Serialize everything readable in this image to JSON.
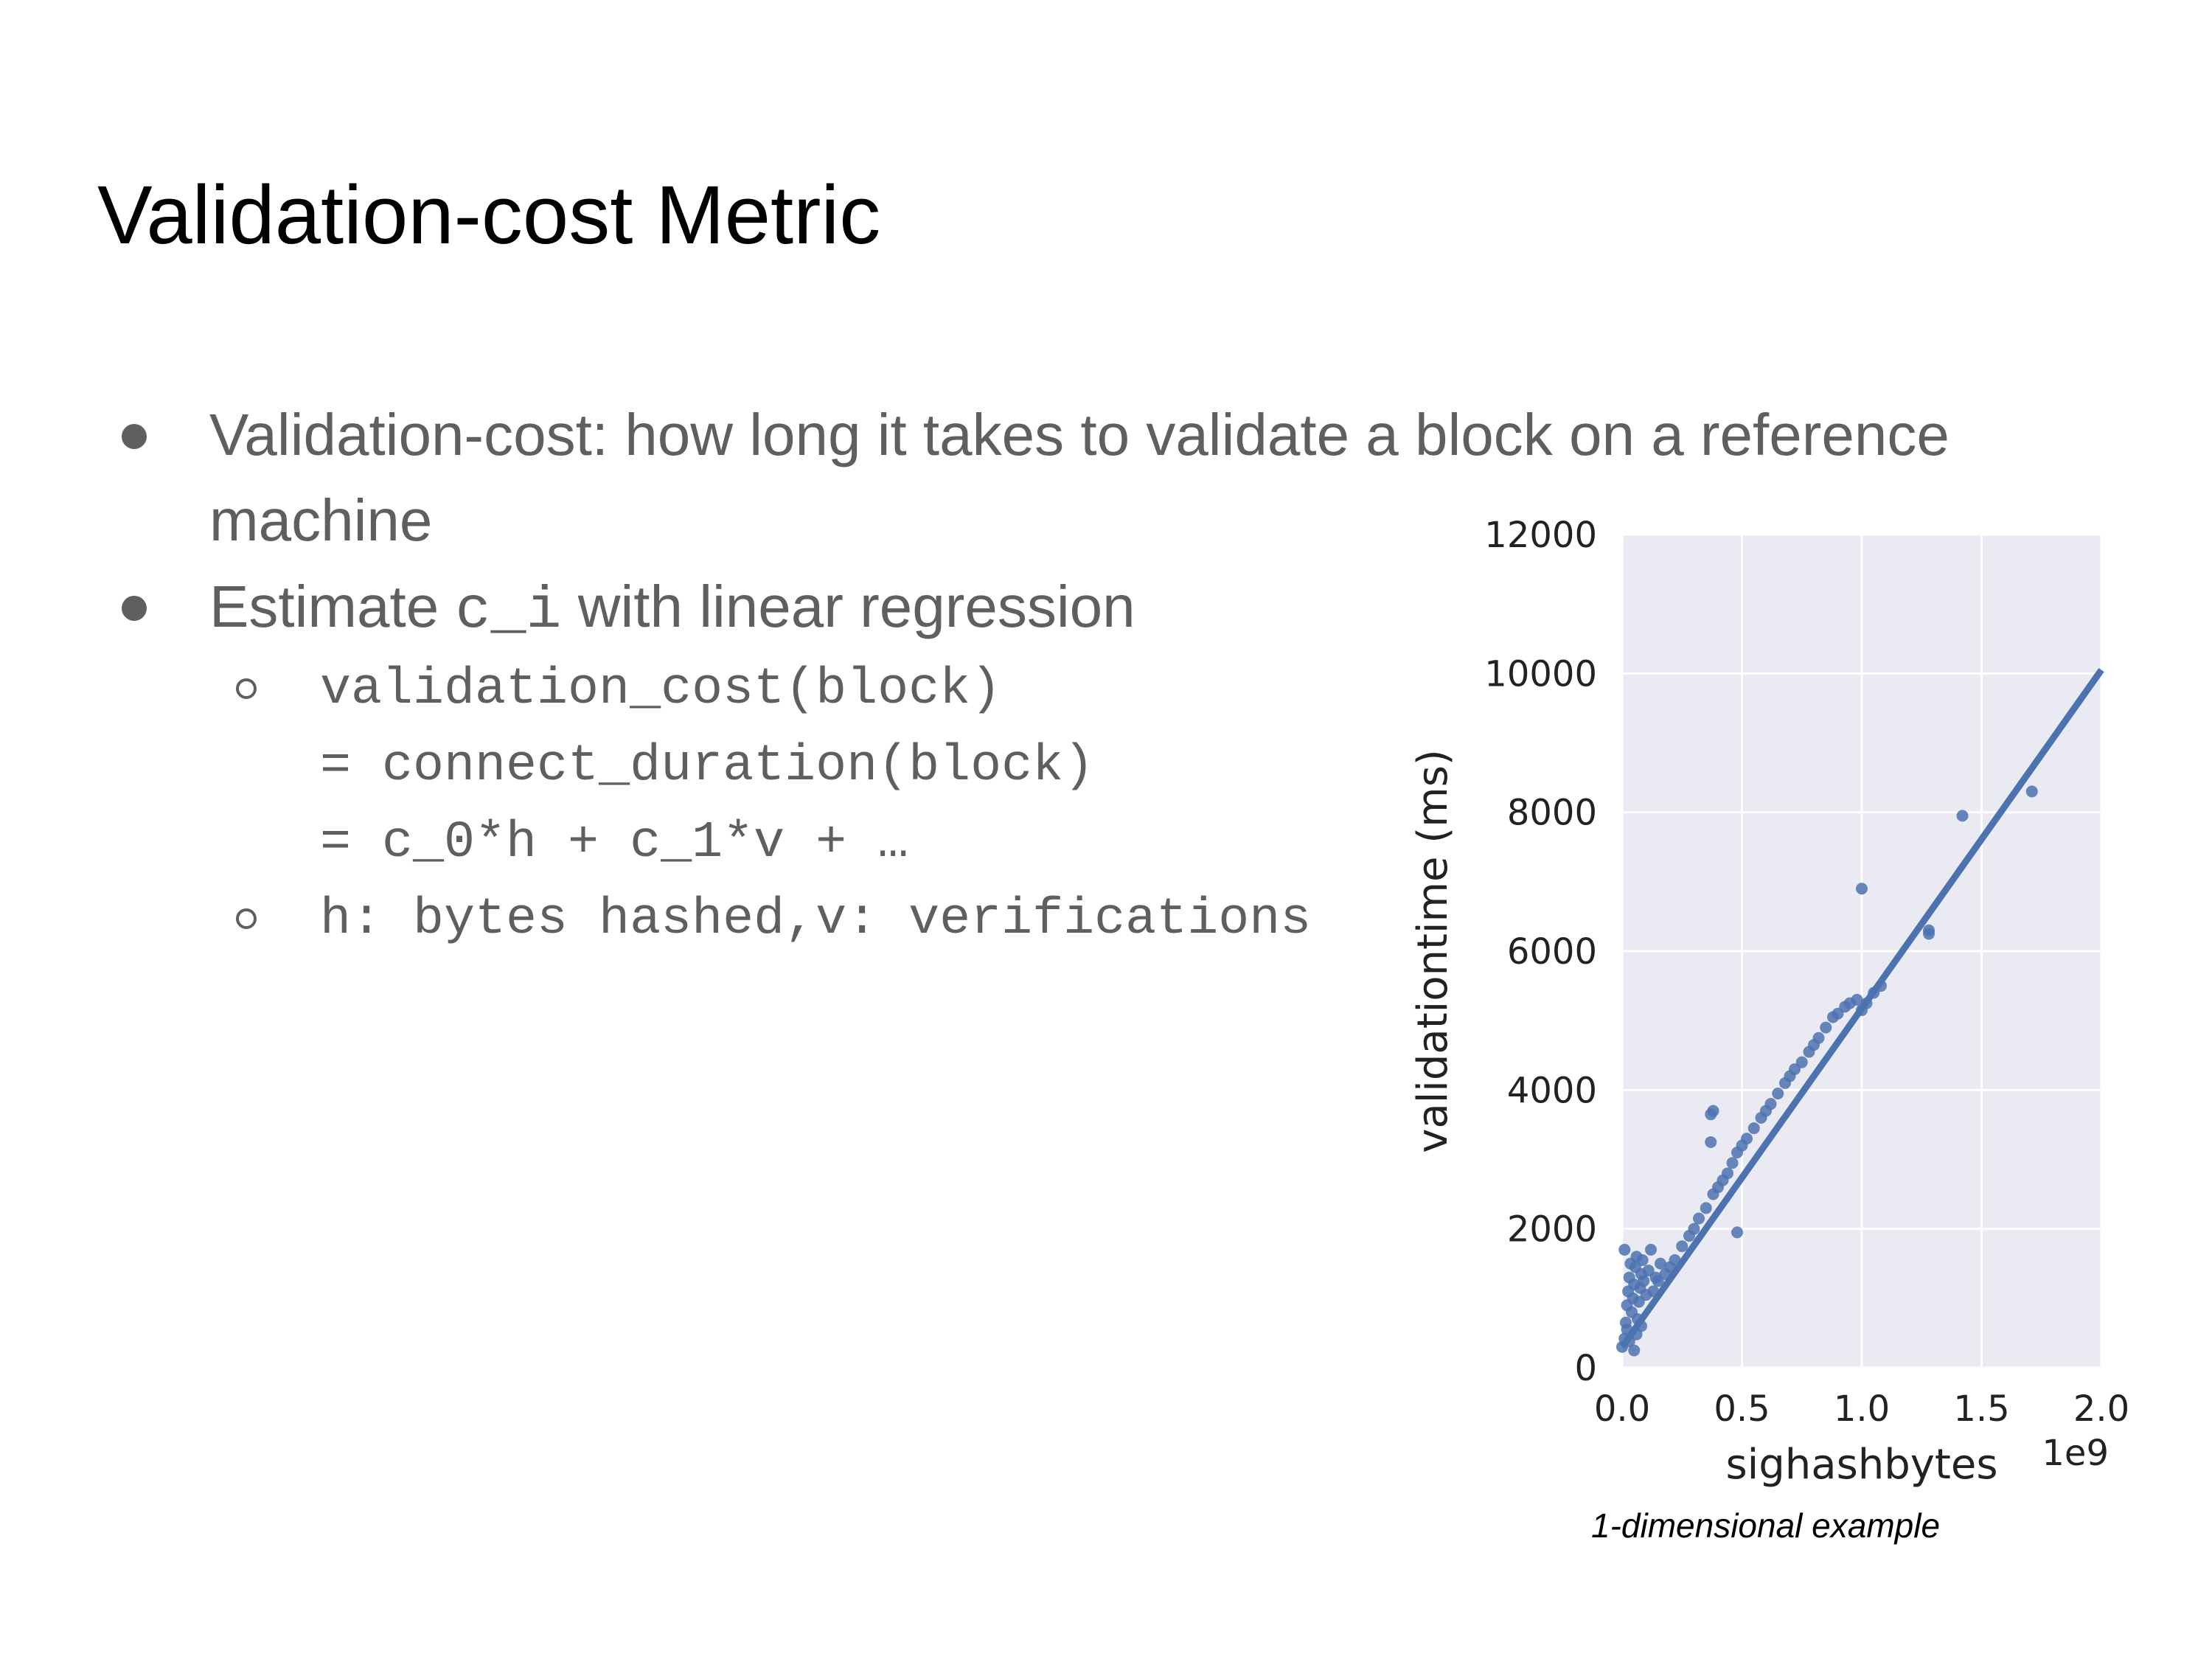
{
  "slide": {
    "title": "Validation-cost Metric",
    "bullet1_line1": "Validation-cost: how long it takes to validate a block on a reference",
    "bullet1_line2": "machine",
    "bullet2_prefix": "Estimate ",
    "bullet2_code": "c_i",
    "bullet2_suffix": " with linear regression",
    "sub1_line1": "validation_cost(block)",
    "sub1_line2": "= connect_duration(block)",
    "sub1_line3": "= c_0*h + c_1*v + …",
    "sub2": "h: bytes hashed,v: verifications",
    "caption": "1-dimensional example"
  },
  "chart_data": {
    "type": "scatter",
    "xlabel": "sighashbytes",
    "ylabel": "validationtime (ms)",
    "x_offset_label": "1e9",
    "xlim": [
      0.0,
      2.0
    ],
    "ylim": [
      0,
      12000
    ],
    "x_ticks": [
      "0.0",
      "0.5",
      "1.0",
      "1.5",
      "2.0"
    ],
    "y_ticks": [
      "0",
      "2000",
      "4000",
      "6000",
      "8000",
      "10000",
      "12000"
    ],
    "x_tick_values": [
      0.0,
      0.5,
      1.0,
      1.5,
      2.0
    ],
    "y_tick_values": [
      0,
      2000,
      4000,
      6000,
      8000,
      10000,
      12000
    ],
    "grid": true,
    "colors": {
      "points": "#4c72b0",
      "background": "#eaeaf2",
      "grid": "#ffffff"
    },
    "regression_line": {
      "x": [
        0.0,
        2.0
      ],
      "y": [
        300,
        10050
      ]
    },
    "points": [
      [
        0.0,
        300
      ],
      [
        0.01,
        420
      ],
      [
        0.015,
        650
      ],
      [
        0.02,
        900
      ],
      [
        0.025,
        1100
      ],
      [
        0.03,
        1300
      ],
      [
        0.035,
        1500
      ],
      [
        0.01,
        1700
      ],
      [
        0.04,
        800
      ],
      [
        0.045,
        1000
      ],
      [
        0.05,
        1200
      ],
      [
        0.055,
        1450
      ],
      [
        0.06,
        1600
      ],
      [
        0.065,
        700
      ],
      [
        0.07,
        950
      ],
      [
        0.075,
        1150
      ],
      [
        0.08,
        1350
      ],
      [
        0.085,
        1550
      ],
      [
        0.09,
        1250
      ],
      [
        0.1,
        1050
      ],
      [
        0.11,
        1400
      ],
      [
        0.12,
        1700
      ],
      [
        0.13,
        1100
      ],
      [
        0.14,
        1300
      ],
      [
        0.15,
        1250
      ],
      [
        0.16,
        1500
      ],
      [
        0.18,
        1350
      ],
      [
        0.2,
        1450
      ],
      [
        0.22,
        1550
      ],
      [
        0.25,
        1750
      ],
      [
        0.28,
        1900
      ],
      [
        0.3,
        2000
      ],
      [
        0.32,
        2150
      ],
      [
        0.35,
        2300
      ],
      [
        0.38,
        2500
      ],
      [
        0.4,
        2600
      ],
      [
        0.42,
        2700
      ],
      [
        0.44,
        2800
      ],
      [
        0.46,
        2950
      ],
      [
        0.48,
        3100
      ],
      [
        0.5,
        3200
      ],
      [
        0.52,
        3300
      ],
      [
        0.55,
        3450
      ],
      [
        0.58,
        3600
      ],
      [
        0.6,
        3700
      ],
      [
        0.62,
        3800
      ],
      [
        0.65,
        3950
      ],
      [
        0.68,
        4100
      ],
      [
        0.7,
        4200
      ],
      [
        0.72,
        4300
      ],
      [
        0.75,
        4400
      ],
      [
        0.78,
        4550
      ],
      [
        0.8,
        4650
      ],
      [
        0.82,
        4750
      ],
      [
        0.85,
        4900
      ],
      [
        0.88,
        5050
      ],
      [
        0.9,
        5100
      ],
      [
        0.93,
        5200
      ],
      [
        0.95,
        5250
      ],
      [
        0.98,
        5300
      ],
      [
        1.0,
        5150
      ],
      [
        1.02,
        5250
      ],
      [
        1.05,
        5400
      ],
      [
        1.08,
        5500
      ],
      [
        0.37,
        3650
      ],
      [
        0.38,
        3700
      ],
      [
        0.37,
        3250
      ],
      [
        0.48,
        1950
      ],
      [
        1.0,
        6900
      ],
      [
        1.28,
        6300
      ],
      [
        1.28,
        6250
      ],
      [
        1.42,
        7950
      ],
      [
        1.71,
        8300
      ],
      [
        0.05,
        250
      ],
      [
        0.03,
        380
      ],
      [
        0.02,
        550
      ],
      [
        0.06,
        480
      ],
      [
        0.08,
        600
      ]
    ]
  }
}
